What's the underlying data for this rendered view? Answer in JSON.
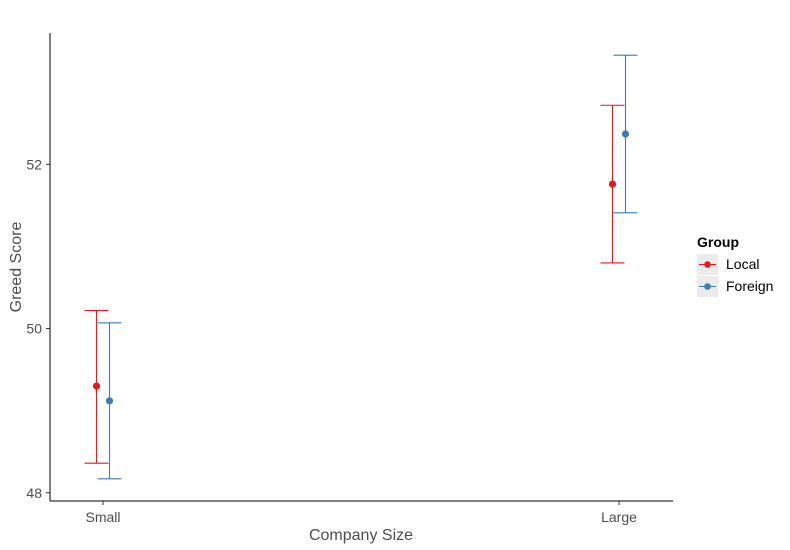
{
  "chart_data": {
    "type": "scatter",
    "title": "",
    "xlabel": "Company Size",
    "ylabel": "Greed Score",
    "categories": [
      "Small",
      "Large"
    ],
    "y_ticks": [
      "48",
      "50",
      "52"
    ],
    "y_tick_values": [
      48,
      50,
      52
    ],
    "ylim": [
      47.9,
      53.6
    ],
    "grid": false,
    "legend": {
      "title": "Group",
      "position": "right"
    },
    "series": [
      {
        "name": "Local",
        "color": "#E41A1C",
        "values": [
          49.3,
          51.76
        ],
        "lower": [
          48.36,
          50.8
        ],
        "upper": [
          50.22,
          52.72
        ]
      },
      {
        "name": "Foreign",
        "color": "#377EB8",
        "values": [
          49.12,
          52.37
        ],
        "lower": [
          48.17,
          51.41
        ],
        "upper": [
          50.07,
          53.33
        ]
      }
    ]
  }
}
